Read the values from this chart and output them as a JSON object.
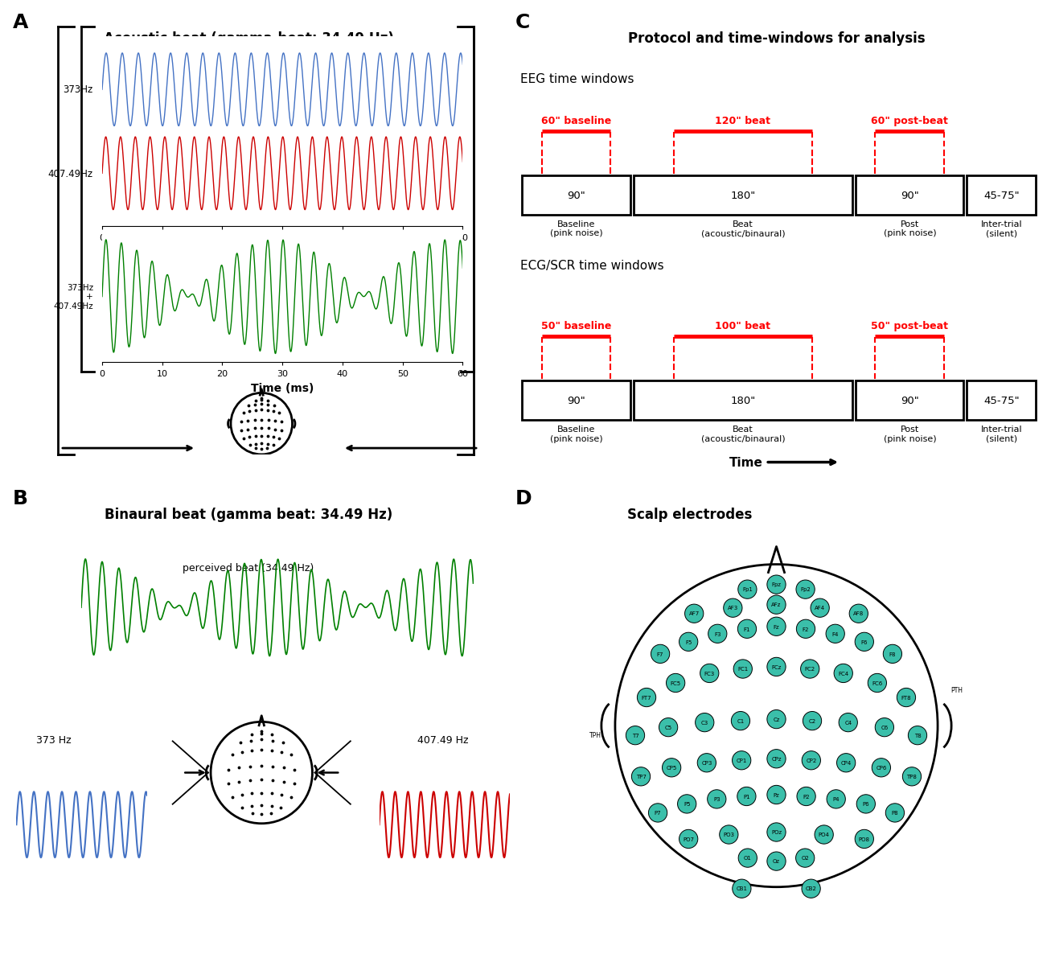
{
  "title_A": "Acoustic beat (gamma-beat: 34.49 Hz)",
  "title_B": "Binaural beat (gamma beat: 34.49 Hz)",
  "title_C": "Protocol and time-windows for analysis",
  "title_D": "Scalp electrodes",
  "freq1": 373,
  "freq2": 407.49,
  "beat_freq": 34.49,
  "color_blue": "#4472C4",
  "color_red": "#CC0000",
  "color_green": "#008000",
  "color_black": "#000000",
  "eeg_labels": [
    "60\" baseline",
    "120\" beat",
    "60\" post-beat"
  ],
  "eeg_boxes": [
    "90\"",
    "180\"",
    "90\"",
    "45-75\""
  ],
  "eeg_box_labels": [
    "Baseline\n(pink noise)",
    "Beat\n(acoustic/binaural)",
    "Post\n(pink noise)",
    "Inter-trial\n(silent)"
  ],
  "ecg_labels": [
    "50\" baseline",
    "100\" beat",
    "50\" post-beat"
  ],
  "ecg_boxes": [
    "90\"",
    "180\"",
    "90\"",
    "45-75\""
  ],
  "ecg_box_labels": [
    "Baseline\n(pink noise)",
    "Beat\n(acoustic/binaural)",
    "Post\n(pink noise)",
    "Inter-trial\n(silent)"
  ],
  "teal_color": "#3BBFAA"
}
